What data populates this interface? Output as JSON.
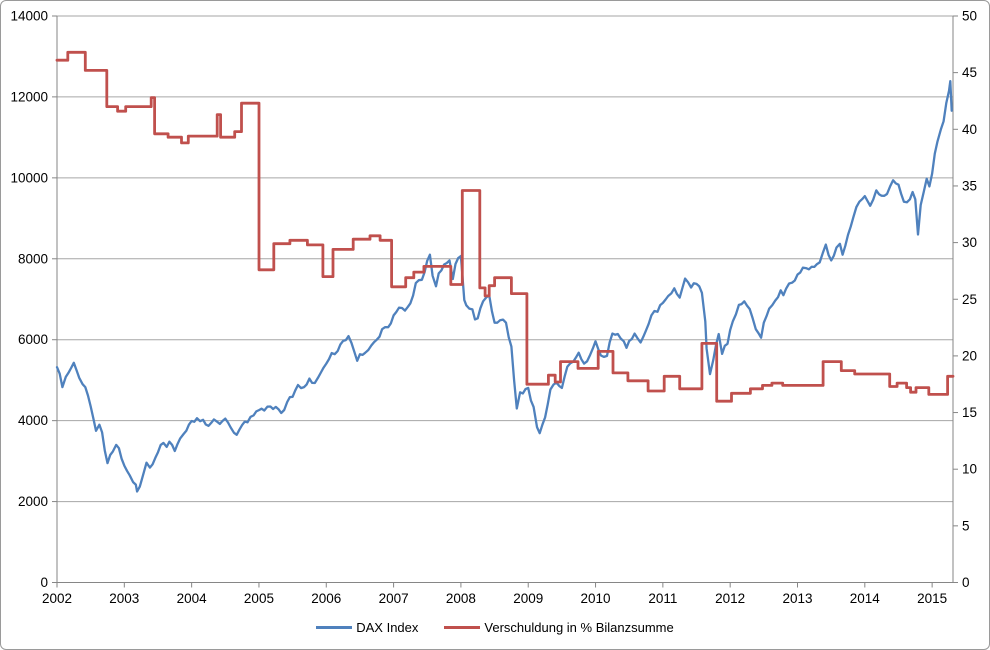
{
  "legend": {
    "items": [
      {
        "label": "DAX Index",
        "color": "#4F81BD"
      },
      {
        "label": "Verschuldung in % Bilanzsumme",
        "color": "#C0504D"
      }
    ]
  },
  "style": {
    "grid_color": "#a6a6a6",
    "axis_color": "#868686",
    "background": "#ffffff",
    "dax_color": "#4F81BD",
    "debt_color": "#C0504D"
  },
  "chart_data": {
    "type": "line",
    "title": "",
    "grid": true,
    "legend_position": "bottom",
    "x_axis": {
      "min": 2002,
      "max": 2015.31,
      "tick_years": [
        2002,
        2003,
        2004,
        2005,
        2006,
        2007,
        2008,
        2009,
        2010,
        2011,
        2012,
        2013,
        2014,
        2015
      ]
    },
    "left_axis": {
      "min": 0,
      "max": 14000,
      "step": 2000,
      "ticks": [
        0,
        2000,
        4000,
        6000,
        8000,
        10000,
        12000,
        14000
      ]
    },
    "right_axis": {
      "min": 0,
      "max": 50,
      "step": 5,
      "ticks": [
        0,
        5,
        10,
        15,
        20,
        25,
        30,
        35,
        40,
        45,
        50
      ]
    },
    "series": [
      {
        "name": "DAX Index",
        "axis": "left",
        "color": "#4F81BD",
        "style": "line",
        "points": [
          [
            2002.0,
            5320
          ],
          [
            2002.04,
            5160
          ],
          [
            2002.08,
            4830
          ],
          [
            2002.13,
            5080
          ],
          [
            2002.17,
            5180
          ],
          [
            2002.21,
            5300
          ],
          [
            2002.25,
            5430
          ],
          [
            2002.29,
            5250
          ],
          [
            2002.33,
            5060
          ],
          [
            2002.38,
            4900
          ],
          [
            2002.42,
            4830
          ],
          [
            2002.46,
            4620
          ],
          [
            2002.5,
            4350
          ],
          [
            2002.54,
            4050
          ],
          [
            2002.58,
            3750
          ],
          [
            2002.63,
            3900
          ],
          [
            2002.67,
            3710
          ],
          [
            2002.71,
            3260
          ],
          [
            2002.75,
            2950
          ],
          [
            2002.79,
            3150
          ],
          [
            2002.83,
            3240
          ],
          [
            2002.88,
            3400
          ],
          [
            2002.92,
            3320
          ],
          [
            2002.96,
            3060
          ],
          [
            2003.0,
            2890
          ],
          [
            2003.04,
            2760
          ],
          [
            2003.08,
            2650
          ],
          [
            2003.13,
            2480
          ],
          [
            2003.17,
            2420
          ],
          [
            2003.19,
            2250
          ],
          [
            2003.23,
            2370
          ],
          [
            2003.25,
            2480
          ],
          [
            2003.29,
            2720
          ],
          [
            2003.33,
            2960
          ],
          [
            2003.38,
            2840
          ],
          [
            2003.42,
            2920
          ],
          [
            2003.46,
            3080
          ],
          [
            2003.5,
            3220
          ],
          [
            2003.54,
            3400
          ],
          [
            2003.58,
            3450
          ],
          [
            2003.63,
            3350
          ],
          [
            2003.67,
            3480
          ],
          [
            2003.71,
            3400
          ],
          [
            2003.75,
            3250
          ],
          [
            2003.79,
            3420
          ],
          [
            2003.83,
            3560
          ],
          [
            2003.88,
            3670
          ],
          [
            2003.92,
            3750
          ],
          [
            2003.96,
            3900
          ],
          [
            2004.0,
            3990
          ],
          [
            2004.08,
            4060
          ],
          [
            2004.17,
            4020
          ],
          [
            2004.25,
            3870
          ],
          [
            2004.33,
            4030
          ],
          [
            2004.42,
            3920
          ],
          [
            2004.5,
            4050
          ],
          [
            2004.58,
            3830
          ],
          [
            2004.63,
            3700
          ],
          [
            2004.67,
            3650
          ],
          [
            2004.75,
            3890
          ],
          [
            2004.83,
            3960
          ],
          [
            2004.92,
            4130
          ],
          [
            2005.0,
            4260
          ],
          [
            2005.08,
            4250
          ],
          [
            2005.17,
            4350
          ],
          [
            2005.25,
            4340
          ],
          [
            2005.33,
            4190
          ],
          [
            2005.42,
            4460
          ],
          [
            2005.5,
            4590
          ],
          [
            2005.58,
            4880
          ],
          [
            2005.67,
            4830
          ],
          [
            2005.75,
            5040
          ],
          [
            2005.83,
            4930
          ],
          [
            2005.92,
            5190
          ],
          [
            2006.0,
            5410
          ],
          [
            2006.08,
            5670
          ],
          [
            2006.17,
            5720
          ],
          [
            2006.25,
            5970
          ],
          [
            2006.33,
            6090
          ],
          [
            2006.42,
            5690
          ],
          [
            2006.46,
            5480
          ],
          [
            2006.5,
            5640
          ],
          [
            2006.58,
            5680
          ],
          [
            2006.67,
            5860
          ],
          [
            2006.75,
            6000
          ],
          [
            2006.83,
            6260
          ],
          [
            2006.92,
            6310
          ],
          [
            2007.0,
            6600
          ],
          [
            2007.08,
            6790
          ],
          [
            2007.17,
            6720
          ],
          [
            2007.25,
            6900
          ],
          [
            2007.33,
            7400
          ],
          [
            2007.42,
            7480
          ],
          [
            2007.5,
            7950
          ],
          [
            2007.54,
            8100
          ],
          [
            2007.58,
            7580
          ],
          [
            2007.63,
            7320
          ],
          [
            2007.67,
            7640
          ],
          [
            2007.75,
            7860
          ],
          [
            2007.83,
            7960
          ],
          [
            2007.88,
            7500
          ],
          [
            2007.92,
            7870
          ],
          [
            2007.96,
            8020
          ],
          [
            2008.0,
            8070
          ],
          [
            2008.05,
            6980
          ],
          [
            2008.08,
            6850
          ],
          [
            2008.17,
            6750
          ],
          [
            2008.21,
            6500
          ],
          [
            2008.25,
            6530
          ],
          [
            2008.33,
            6950
          ],
          [
            2008.42,
            7100
          ],
          [
            2008.5,
            6420
          ],
          [
            2008.58,
            6480
          ],
          [
            2008.67,
            6420
          ],
          [
            2008.75,
            5830
          ],
          [
            2008.79,
            5000
          ],
          [
            2008.83,
            4300
          ],
          [
            2008.88,
            4700
          ],
          [
            2008.92,
            4670
          ],
          [
            2009.0,
            4810
          ],
          [
            2009.04,
            4500
          ],
          [
            2009.08,
            4340
          ],
          [
            2009.13,
            3840
          ],
          [
            2009.17,
            3690
          ],
          [
            2009.21,
            3900
          ],
          [
            2009.25,
            4080
          ],
          [
            2009.29,
            4400
          ],
          [
            2009.33,
            4770
          ],
          [
            2009.42,
            4940
          ],
          [
            2009.5,
            4810
          ],
          [
            2009.58,
            5330
          ],
          [
            2009.67,
            5460
          ],
          [
            2009.75,
            5680
          ],
          [
            2009.83,
            5410
          ],
          [
            2009.92,
            5630
          ],
          [
            2010.0,
            5960
          ],
          [
            2010.08,
            5610
          ],
          [
            2010.17,
            5600
          ],
          [
            2010.25,
            6150
          ],
          [
            2010.33,
            6140
          ],
          [
            2010.42,
            5960
          ],
          [
            2010.46,
            5800
          ],
          [
            2010.5,
            5970
          ],
          [
            2010.58,
            6150
          ],
          [
            2010.67,
            5930
          ],
          [
            2010.75,
            6230
          ],
          [
            2010.83,
            6600
          ],
          [
            2010.92,
            6690
          ],
          [
            2011.0,
            6910
          ],
          [
            2011.08,
            7080
          ],
          [
            2011.17,
            7270
          ],
          [
            2011.25,
            7040
          ],
          [
            2011.33,
            7510
          ],
          [
            2011.42,
            7290
          ],
          [
            2011.5,
            7380
          ],
          [
            2011.58,
            7160
          ],
          [
            2011.63,
            6450
          ],
          [
            2011.65,
            5780
          ],
          [
            2011.7,
            5150
          ],
          [
            2011.75,
            5500
          ],
          [
            2011.79,
            5870
          ],
          [
            2011.83,
            6140
          ],
          [
            2011.88,
            5650
          ],
          [
            2011.92,
            5850
          ],
          [
            2011.96,
            5900
          ],
          [
            2012.04,
            6460
          ],
          [
            2012.13,
            6860
          ],
          [
            2012.21,
            6950
          ],
          [
            2012.29,
            6760
          ],
          [
            2012.38,
            6260
          ],
          [
            2012.46,
            6050
          ],
          [
            2012.5,
            6420
          ],
          [
            2012.54,
            6580
          ],
          [
            2012.58,
            6770
          ],
          [
            2012.67,
            6970
          ],
          [
            2012.75,
            7220
          ],
          [
            2012.79,
            7100
          ],
          [
            2012.83,
            7260
          ],
          [
            2012.92,
            7410
          ],
          [
            2013.0,
            7610
          ],
          [
            2013.08,
            7780
          ],
          [
            2013.17,
            7740
          ],
          [
            2013.25,
            7800
          ],
          [
            2013.33,
            7910
          ],
          [
            2013.42,
            8350
          ],
          [
            2013.46,
            8100
          ],
          [
            2013.5,
            7960
          ],
          [
            2013.58,
            8280
          ],
          [
            2013.63,
            8370
          ],
          [
            2013.67,
            8100
          ],
          [
            2013.75,
            8590
          ],
          [
            2013.83,
            9030
          ],
          [
            2013.92,
            9410
          ],
          [
            2014.0,
            9550
          ],
          [
            2014.08,
            9310
          ],
          [
            2014.17,
            9690
          ],
          [
            2014.25,
            9560
          ],
          [
            2014.33,
            9600
          ],
          [
            2014.42,
            9940
          ],
          [
            2014.5,
            9830
          ],
          [
            2014.54,
            9600
          ],
          [
            2014.58,
            9410
          ],
          [
            2014.67,
            9470
          ],
          [
            2014.71,
            9650
          ],
          [
            2014.75,
            9470
          ],
          [
            2014.79,
            8600
          ],
          [
            2014.83,
            9330
          ],
          [
            2014.92,
            9980
          ],
          [
            2014.96,
            9790
          ],
          [
            2015.0,
            10100
          ],
          [
            2015.04,
            10600
          ],
          [
            2015.08,
            10900
          ],
          [
            2015.13,
            11200
          ],
          [
            2015.17,
            11400
          ],
          [
            2015.21,
            11850
          ],
          [
            2015.25,
            12150
          ],
          [
            2015.27,
            12390
          ],
          [
            2015.29,
            11660
          ]
        ]
      },
      {
        "name": "Verschuldung in % Bilanzsumme",
        "axis": "right",
        "color": "#C0504D",
        "style": "step",
        "points": [
          [
            2002.0,
            46.1
          ],
          [
            2002.16,
            46.8
          ],
          [
            2002.42,
            45.2
          ],
          [
            2002.74,
            42.0
          ],
          [
            2002.9,
            41.6
          ],
          [
            2003.02,
            42.0
          ],
          [
            2003.4,
            42.8
          ],
          [
            2003.45,
            39.6
          ],
          [
            2003.65,
            39.3
          ],
          [
            2003.85,
            38.8
          ],
          [
            2003.95,
            39.4
          ],
          [
            2004.38,
            41.3
          ],
          [
            2004.43,
            39.3
          ],
          [
            2004.64,
            39.8
          ],
          [
            2004.74,
            42.3
          ],
          [
            2005.0,
            27.6
          ],
          [
            2005.22,
            29.9
          ],
          [
            2005.46,
            30.2
          ],
          [
            2005.72,
            29.8
          ],
          [
            2005.95,
            27.0
          ],
          [
            2006.1,
            29.4
          ],
          [
            2006.4,
            30.3
          ],
          [
            2006.65,
            30.6
          ],
          [
            2006.8,
            30.2
          ],
          [
            2006.97,
            26.1
          ],
          [
            2007.18,
            26.9
          ],
          [
            2007.3,
            27.4
          ],
          [
            2007.45,
            27.9
          ],
          [
            2007.85,
            26.3
          ],
          [
            2008.02,
            34.6
          ],
          [
            2008.28,
            26.0
          ],
          [
            2008.36,
            25.3
          ],
          [
            2008.42,
            26.2
          ],
          [
            2008.5,
            26.9
          ],
          [
            2008.75,
            25.5
          ],
          [
            2008.98,
            17.5
          ],
          [
            2009.3,
            18.3
          ],
          [
            2009.4,
            17.7
          ],
          [
            2009.48,
            19.5
          ],
          [
            2009.74,
            18.9
          ],
          [
            2010.04,
            20.4
          ],
          [
            2010.26,
            18.5
          ],
          [
            2010.48,
            17.8
          ],
          [
            2010.78,
            16.9
          ],
          [
            2011.02,
            18.2
          ],
          [
            2011.25,
            17.1
          ],
          [
            2011.58,
            21.1
          ],
          [
            2011.8,
            16.0
          ],
          [
            2012.02,
            16.7
          ],
          [
            2012.3,
            17.1
          ],
          [
            2012.48,
            17.4
          ],
          [
            2012.62,
            17.6
          ],
          [
            2012.78,
            17.4
          ],
          [
            2013.38,
            19.5
          ],
          [
            2013.65,
            18.7
          ],
          [
            2013.85,
            18.4
          ],
          [
            2014.37,
            17.3
          ],
          [
            2014.48,
            17.6
          ],
          [
            2014.62,
            17.2
          ],
          [
            2014.68,
            16.8
          ],
          [
            2014.76,
            17.2
          ],
          [
            2014.95,
            16.6
          ],
          [
            2015.23,
            18.2
          ]
        ]
      }
    ]
  }
}
